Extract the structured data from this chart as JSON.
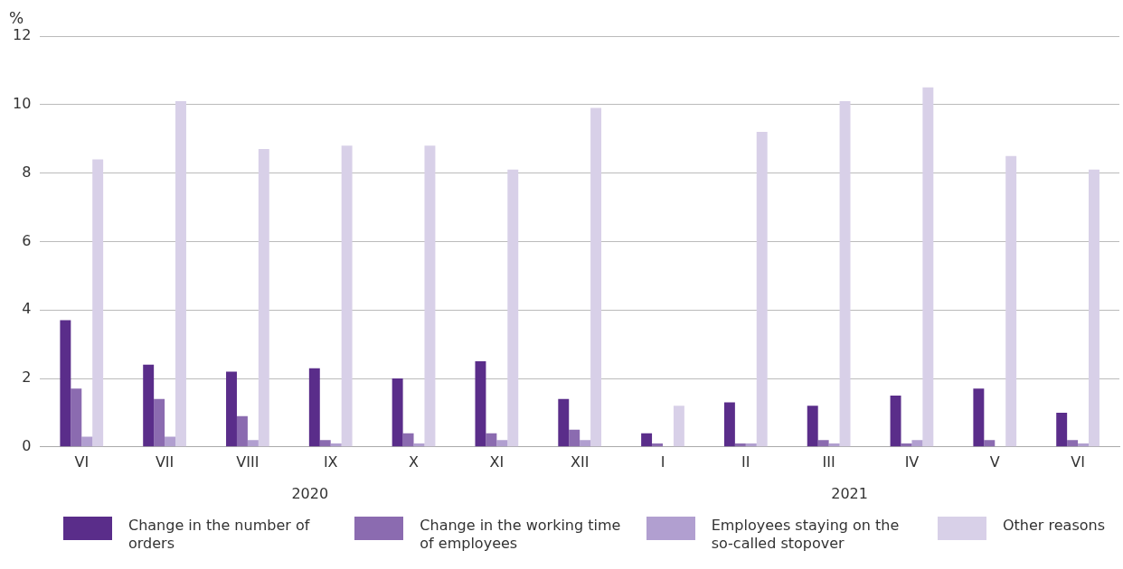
{
  "chart_data": {
    "type": "bar",
    "ylabel": "%",
    "categories": [
      "VI",
      "VII",
      "VIII",
      "IX",
      "X",
      "XI",
      "XII",
      "I",
      "II",
      "III",
      "IV",
      "V",
      "VI"
    ],
    "series": [
      {
        "name": "Change in the number of orders",
        "color": "#5a2d8a",
        "values": [
          3.7,
          2.4,
          2.2,
          2.3,
          2.0,
          2.5,
          1.4,
          0.4,
          1.3,
          1.2,
          1.5,
          1.7,
          1.0
        ]
      },
      {
        "name": "Change in the working time of employees",
        "color": "#8b6bb0",
        "values": [
          1.7,
          1.4,
          0.9,
          0.2,
          0.4,
          0.4,
          0.5,
          0.1,
          0.1,
          0.2,
          0.1,
          0.2,
          0.2
        ]
      },
      {
        "name": "Employees staying on the so-called stopover",
        "color": "#b19fd0",
        "values": [
          0.3,
          0.3,
          0.2,
          0.1,
          0.1,
          0.2,
          0.2,
          0.0,
          0.1,
          0.1,
          0.2,
          0.0,
          0.1
        ]
      },
      {
        "name": "Other reasons",
        "color": "#d8d0e8",
        "values": [
          8.4,
          10.1,
          8.7,
          8.8,
          8.8,
          8.1,
          9.9,
          1.2,
          9.2,
          10.1,
          10.5,
          8.5,
          8.1
        ]
      }
    ],
    "ylim": [
      0,
      12
    ],
    "yticks": [
      0,
      2,
      4,
      6,
      8,
      10,
      12
    ],
    "grid": "y",
    "legend": "bottom",
    "annotations": [
      "2020",
      "2021"
    ]
  }
}
